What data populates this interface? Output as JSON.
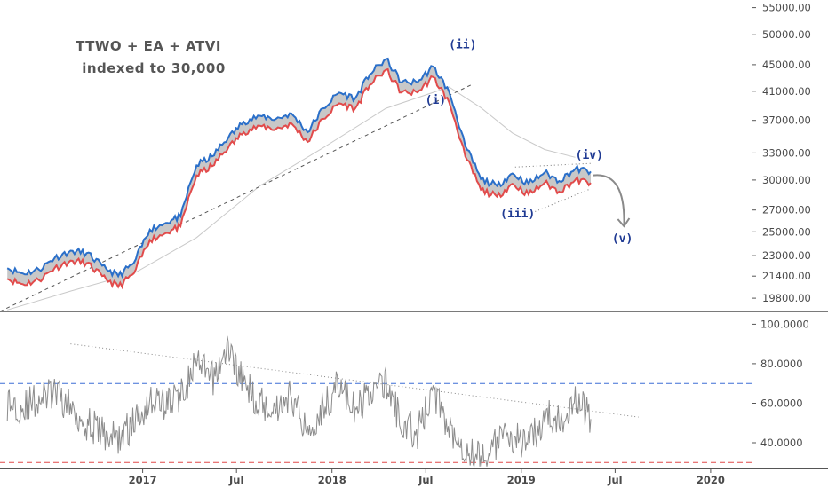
{
  "title_lines": [
    "TTWO + EA + ATVI",
    "indexed to 30,000"
  ],
  "colors": {
    "upper_band": "#2a6fc9",
    "lower_band": "#e24b4b",
    "band_fill": "#c8c8c8",
    "moving_average": "#c9c9c9",
    "oscillator": "#8c8c8c",
    "overbought_line": "#3d6fd6",
    "oversold_line": "#e04848",
    "wave_label": "#1f3a93"
  },
  "chart_data": [
    {
      "type": "line",
      "panel": "price",
      "y_scale": "log",
      "ylim": [
        18900,
        56500
      ],
      "y_ticks": [
        "19800.00",
        "21400.00",
        "23000.00",
        "25000.00",
        "27000.00",
        "30000.00",
        "33000.00",
        "37000.00",
        "41000.00",
        "45000.00",
        "50000.00",
        "55000.00"
      ],
      "x_range": [
        "2016-04-01",
        "2020-03-20"
      ],
      "x_ticks": [
        "2017",
        "Jul",
        "2018",
        "Jul",
        "2019",
        "Jul",
        "2020"
      ],
      "grid": false,
      "series_x": [
        "2016-04",
        "2016-05",
        "2016-06",
        "2016-07",
        "2016-08",
        "2016-09",
        "2016-10",
        "2016-11",
        "2016-12",
        "2017-01",
        "2017-02",
        "2017-03",
        "2017-04",
        "2017-05",
        "2017-06",
        "2017-07",
        "2017-08",
        "2017-09",
        "2017-10",
        "2017-11",
        "2017-12",
        "2018-01",
        "2018-02",
        "2018-03",
        "2018-04",
        "2018-05",
        "2018-06",
        "2018-07",
        "2018-08",
        "2018-09",
        "2018-10",
        "2018-11",
        "2018-12",
        "2019-01",
        "2019-02",
        "2019-03",
        "2019-04",
        "2019-05"
      ],
      "series": [
        {
          "name": "",
          "role": "upper",
          "values": [
            22000,
            21600,
            21900,
            22800,
            23400,
            23200,
            22200,
            21400,
            22400,
            25200,
            25800,
            26400,
            31600,
            32600,
            34800,
            36800,
            37600,
            37200,
            37900,
            35500,
            38600,
            40800,
            40000,
            43500,
            45900,
            42300,
            42300,
            44700,
            40900,
            33800,
            30100,
            29400,
            30700,
            29600,
            30800,
            29900,
            31200,
            30900
          ]
        },
        {
          "name": "",
          "role": "lower",
          "values": [
            21200,
            20800,
            21100,
            22000,
            22600,
            22400,
            21400,
            20600,
            21600,
            24300,
            24900,
            25500,
            30500,
            31500,
            33600,
            35500,
            36300,
            35900,
            36600,
            34300,
            37200,
            39300,
            38600,
            41900,
            44200,
            40800,
            40800,
            43100,
            39400,
            32600,
            29000,
            28300,
            29600,
            28500,
            29700,
            28800,
            30000,
            29700
          ]
        }
      ],
      "moving_average": {
        "x": [
          "2016-04",
          "2016-08",
          "2016-12",
          "2017-04",
          "2017-08",
          "2017-12",
          "2018-04",
          "2018-08",
          "2018-10",
          "2018-12",
          "2019-02",
          "2019-04"
        ],
        "values": [
          19000,
          20300,
          21600,
          24500,
          29400,
          33600,
          38600,
          41600,
          38700,
          35400,
          33400,
          32500
        ]
      },
      "annotations": [
        {
          "text": "(i)",
          "x": "2018-07-20",
          "y": 39200
        },
        {
          "text": "(ii)",
          "x": "2018-09-10",
          "y": 47700
        },
        {
          "text": "(iii)",
          "x": "2018-12-25",
          "y": 26300
        },
        {
          "text": "(iv)",
          "x": "2019-05-12",
          "y": 32300
        },
        {
          "text": "(v)",
          "x": "2019-07-15",
          "y": 24100
        }
      ],
      "trendline": {
        "x": [
          "2016-04-01",
          "2018-10-01"
        ],
        "y": [
          18900,
          42100
        ],
        "style": "dashed"
      },
      "triangle": {
        "upper": {
          "x": [
            "2018-12-20",
            "2019-05-15"
          ],
          "y": [
            31400,
            31800
          ]
        },
        "lower": {
          "x": [
            "2019-01-15",
            "2019-05-15"
          ],
          "y": [
            26600,
            29100
          ]
        },
        "style": "dotted"
      },
      "projection": {
        "x": [
          "2019-05-20",
          "2019-07-18"
        ],
        "y": [
          30500,
          25500
        ]
      }
    },
    {
      "type": "line",
      "panel": "oscillator",
      "ylim": [
        27,
        106
      ],
      "y_ticks": [
        "40.0000",
        "60.0000",
        "80.0000",
        "100.0000"
      ],
      "reference_lines": [
        70,
        30
      ],
      "series_x": [
        "2016-04",
        "2016-05",
        "2016-06",
        "2016-07",
        "2016-08",
        "2016-09",
        "2016-10",
        "2016-11",
        "2016-12",
        "2017-01",
        "2017-02",
        "2017-03",
        "2017-04",
        "2017-05",
        "2017-06",
        "2017-07",
        "2017-08",
        "2017-09",
        "2017-10",
        "2017-11",
        "2017-12",
        "2018-01",
        "2018-02",
        "2018-03",
        "2018-04",
        "2018-05",
        "2018-06",
        "2018-07",
        "2018-08",
        "2018-09",
        "2018-10",
        "2018-11",
        "2018-12",
        "2019-01",
        "2019-02",
        "2019-03",
        "2019-04",
        "2019-05"
      ],
      "series": [
        {
          "name": "",
          "values": [
            60,
            58,
            62,
            65,
            58,
            50,
            45,
            42,
            50,
            62,
            60,
            64,
            80,
            72,
            88,
            70,
            60,
            58,
            64,
            46,
            58,
            70,
            55,
            66,
            70,
            50,
            45,
            66,
            48,
            38,
            32,
            40,
            44,
            38,
            54,
            50,
            64,
            52
          ]
        }
      ],
      "trendline": {
        "x": [
          "2016-08-15",
          "2019-08-15"
        ],
        "y": [
          90,
          53
        ],
        "style": "dotted"
      }
    }
  ]
}
